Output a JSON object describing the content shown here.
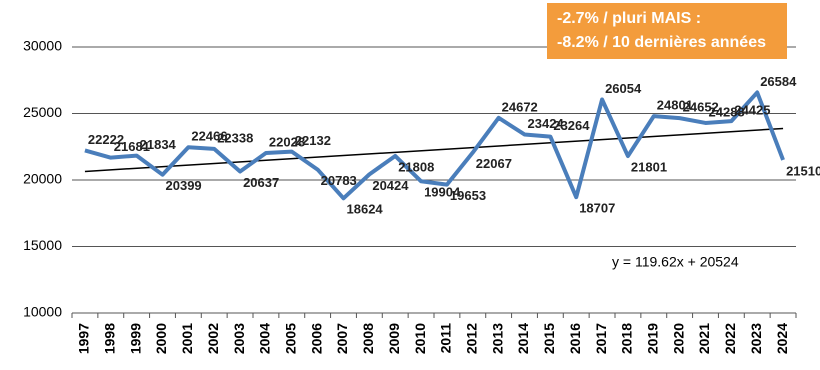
{
  "chart_data": {
    "type": "line",
    "categories": [
      "1997",
      "1998",
      "1999",
      "2000",
      "2001",
      "2002",
      "2003",
      "2004",
      "2005",
      "2006",
      "2007",
      "2008",
      "2009",
      "2010",
      "2011",
      "2012",
      "2013",
      "2014",
      "2015",
      "2016",
      "2017",
      "2018",
      "2019",
      "2020",
      "2021",
      "2022",
      "2023",
      "2024"
    ],
    "series": [
      {
        "color": "#4a7ebb",
        "values": [
          22222,
          21681,
          21834,
          20399,
          22466,
          22338,
          20637,
          22028,
          22132,
          20783,
          18624,
          20424,
          21808,
          19904,
          19653,
          22067,
          24672,
          23424,
          23264,
          18707,
          26054,
          21801,
          24801,
          24652,
          24288,
          24425,
          26584,
          21510
        ]
      }
    ],
    "ylim": [
      10000,
      30000
    ],
    "yticks": [
      10000,
      15000,
      20000,
      25000,
      30000
    ],
    "grid": true,
    "trendline": {
      "equation": "y = 119.62x + 20524",
      "slope": 119.62,
      "intercept": 20524,
      "color": "#000000"
    },
    "annotation": {
      "lines": [
        "-2.7% / pluri MAIS :",
        "-8.2% / 10 dernières années"
      ],
      "color": "#f39c3c"
    }
  }
}
